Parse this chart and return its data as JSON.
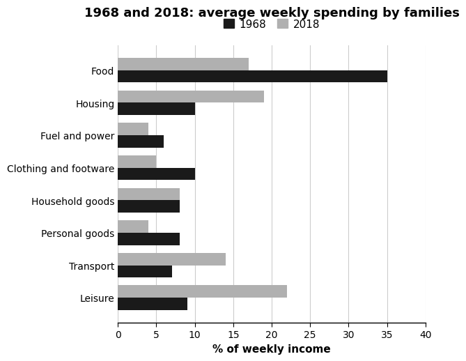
{
  "title": "1968 and 2018: average weekly spending by families",
  "xlabel": "% of weekly income",
  "categories": [
    "Food",
    "Housing",
    "Fuel and power",
    "Clothing and footware",
    "Household goods",
    "Personal goods",
    "Transport",
    "Leisure"
  ],
  "values_1968": [
    35,
    10,
    6,
    10,
    8,
    8,
    7,
    9
  ],
  "values_2018": [
    17,
    19,
    4,
    5,
    8,
    4,
    14,
    22
  ],
  "color_1968": "#1a1a1a",
  "color_2018": "#b0b0b0",
  "legend_labels": [
    "1968",
    "2018"
  ],
  "xlim": [
    0,
    40
  ],
  "xticks": [
    0,
    5,
    10,
    15,
    20,
    25,
    30,
    35,
    40
  ],
  "bar_height": 0.38,
  "title_fontsize": 13,
  "label_fontsize": 11,
  "tick_fontsize": 10,
  "legend_fontsize": 11,
  "background_color": "#ffffff",
  "grid_color": "#cccccc"
}
